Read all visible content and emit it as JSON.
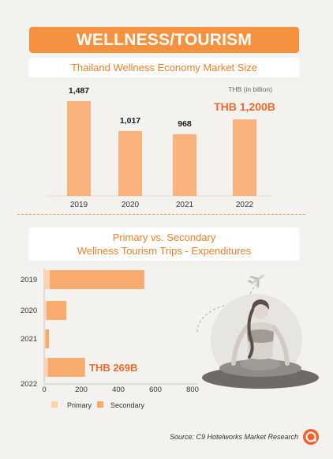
{
  "header": {
    "title": "WELLNESS/TOURISM"
  },
  "colors": {
    "accent": "#f6913f",
    "bar": "#f9b27c",
    "highlight": "#ea6a2c",
    "primary": "#fbd3b3",
    "secondary": "#f7ab6f"
  },
  "chart_data": [
    {
      "type": "bar",
      "title": "Thailand Wellness Economy Market Size",
      "unit_label": "THB (in billion)",
      "categories": [
        "2019",
        "2020",
        "2021",
        "2022"
      ],
      "values": [
        1487,
        1017,
        968,
        1200
      ],
      "data_labels": [
        "1,487",
        "1,017",
        "968",
        "THB 1,200B"
      ],
      "ylim": [
        0,
        1600
      ],
      "grid": false
    },
    {
      "type": "bar",
      "orientation": "horizontal",
      "stacked": true,
      "title": [
        "Primary vs. Secondary",
        "Wellness Tourism Trips - Expenditures"
      ],
      "categories": [
        "2019",
        "2020",
        "2021",
        "2022"
      ],
      "series": [
        {
          "name": "Primary",
          "values": [
            30,
            12,
            6,
            20
          ]
        },
        {
          "name": "Secondary",
          "values": [
            510,
            108,
            20,
            200
          ]
        }
      ],
      "annotation": "THB 269B",
      "x_ticks": [
        "0",
        "200",
        "400",
        "600",
        "800"
      ],
      "xlim": [
        0,
        800
      ],
      "legend_position": "bottom-left",
      "grid": false
    }
  ],
  "footer": {
    "source": "Source: C9 Hotelworks Market Research"
  },
  "icons": [
    "airplane-icon",
    "meditating-woman-illustration",
    "c9-logo-icon"
  ]
}
